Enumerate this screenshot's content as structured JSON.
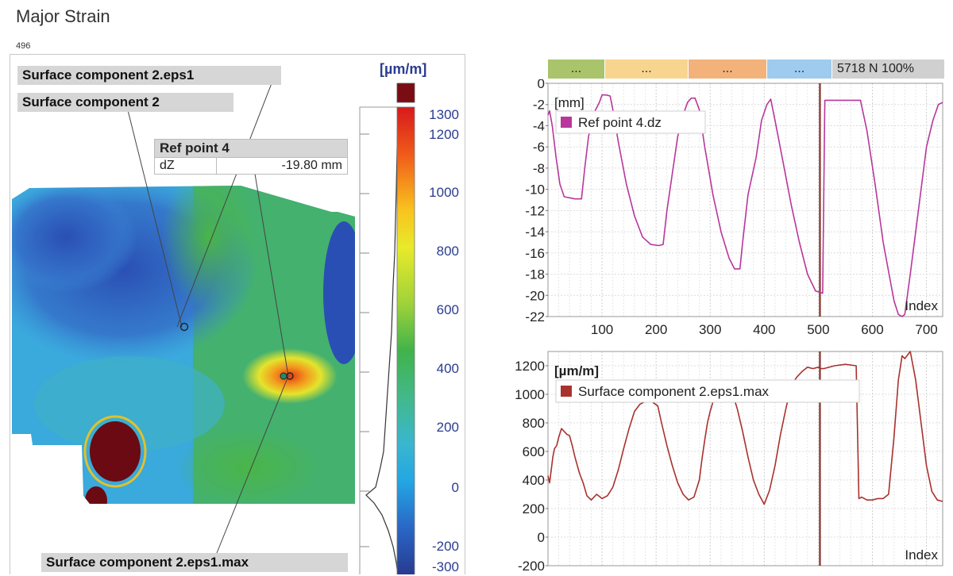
{
  "window": {
    "title": "Major Strain",
    "frame_number": "496"
  },
  "viewport": {
    "labels": {
      "eps1": "Surface component 2.eps1",
      "component": "Surface component 2",
      "eps1_max": "Surface component 2.eps1.max"
    },
    "ref_point": {
      "title": "Ref point 4",
      "field": "dZ",
      "value": "-19.80 mm"
    }
  },
  "color_scale": {
    "unit": "[µm/m]",
    "ticks": [
      "1300",
      "1200",
      "1000",
      "800",
      "600",
      "400",
      "200",
      "0",
      "-200",
      "-300"
    ]
  },
  "stage_bar": {
    "segments": [
      {
        "label": "...",
        "color": "#a9c46a"
      },
      {
        "label": "...",
        "color": "#f8d58e"
      },
      {
        "label": "...",
        "color": "#f3b27a"
      },
      {
        "label": "...",
        "color": "#9ecbee"
      }
    ],
    "readout": "5718 N 100%"
  },
  "chart_data": [
    {
      "type": "line",
      "ylabel": "[mm]",
      "xlabel": "Index",
      "xlim": [
        0,
        730
      ],
      "ylim": [
        -22,
        0
      ],
      "xticks": [
        "100",
        "200",
        "300",
        "400",
        "500",
        "600",
        "700"
      ],
      "yticks": [
        "0",
        "-2",
        "-4",
        "-6",
        "-8",
        "-10",
        "-12",
        "-14",
        "-16",
        "-18",
        "-20",
        "-22"
      ],
      "cursor_x": 503,
      "color": "#b8379b",
      "series": [
        {
          "name": "Ref point 4.dz",
          "x": [
            0,
            3,
            8,
            15,
            22,
            30,
            40,
            50,
            62,
            68,
            75,
            85,
            95,
            100,
            108,
            115,
            120,
            130,
            145,
            160,
            175,
            190,
            205,
            213,
            220,
            230,
            240,
            250,
            258,
            265,
            272,
            280,
            290,
            305,
            320,
            335,
            345,
            355,
            360,
            370,
            385,
            395,
            405,
            412,
            420,
            435,
            450,
            465,
            480,
            495,
            503,
            508,
            512,
            570,
            578,
            590,
            605,
            620,
            640,
            648,
            655,
            660,
            670,
            685,
            700,
            712,
            722,
            730
          ],
          "y": [
            -3,
            -2.6,
            -4,
            -7,
            -9.5,
            -10.7,
            -10.8,
            -10.9,
            -10.9,
            -8,
            -5,
            -2.8,
            -1.8,
            -1.1,
            -1.1,
            -1.2,
            -2.5,
            -5.5,
            -9.5,
            -12.5,
            -14.5,
            -15.2,
            -15.3,
            -15.2,
            -12,
            -8.5,
            -5,
            -3,
            -1.8,
            -1.4,
            -1.4,
            -2.5,
            -6,
            -10.5,
            -14,
            -16.5,
            -17.5,
            -17.5,
            -15,
            -10.5,
            -7,
            -3.5,
            -2,
            -1.5,
            -3.5,
            -7.5,
            -11.5,
            -15,
            -18,
            -19.6,
            -19.7,
            -19.8,
            -1.6,
            -1.6,
            -1.6,
            -4.5,
            -9.5,
            -15,
            -20.5,
            -21.8,
            -22,
            -21.8,
            -18,
            -12,
            -6,
            -3.5,
            -2,
            -1.8
          ]
        }
      ]
    },
    {
      "type": "line",
      "ylabel": "[µm/m]",
      "xlabel": "Index",
      "xlim": [
        0,
        730
      ],
      "ylim": [
        -200,
        1300
      ],
      "xticks": [],
      "yticks": [
        "1200",
        "1000",
        "800",
        "600",
        "400",
        "200",
        "0",
        "-200"
      ],
      "cursor_x": 503,
      "color": "#a8322d",
      "series": [
        {
          "name": "Surface component 2.eps1.max",
          "x": [
            0,
            3,
            6,
            9,
            12,
            16,
            20,
            25,
            30,
            35,
            40,
            45,
            50,
            58,
            65,
            72,
            80,
            90,
            100,
            110,
            120,
            130,
            140,
            150,
            160,
            170,
            180,
            188,
            195,
            203,
            210,
            220,
            230,
            240,
            250,
            260,
            270,
            280,
            285,
            290,
            295,
            300,
            310,
            320,
            330,
            340,
            350,
            360,
            370,
            380,
            390,
            400,
            410,
            420,
            430,
            440,
            450,
            460,
            470,
            480,
            490,
            500,
            503,
            510,
            530,
            550,
            570,
            575,
            580,
            590,
            600,
            610,
            620,
            630,
            640,
            648,
            655,
            660,
            670,
            680,
            690,
            700,
            710,
            720,
            730
          ],
          "y": [
            430,
            380,
            470,
            560,
            620,
            640,
            700,
            760,
            740,
            720,
            710,
            640,
            560,
            450,
            380,
            290,
            260,
            300,
            270,
            290,
            350,
            470,
            620,
            760,
            880,
            930,
            950,
            970,
            940,
            920,
            800,
            640,
            500,
            380,
            300,
            260,
            280,
            400,
            550,
            680,
            800,
            880,
            1010,
            1080,
            1050,
            1020,
            900,
            740,
            560,
            400,
            300,
            230,
            330,
            500,
            720,
            900,
            1060,
            1120,
            1160,
            1190,
            1180,
            1190,
            1180,
            1180,
            1200,
            1210,
            1200,
            270,
            280,
            260,
            260,
            270,
            270,
            300,
            700,
            1100,
            1270,
            1250,
            1300,
            1100,
            800,
            500,
            320,
            260,
            250
          ]
        }
      ]
    }
  ]
}
